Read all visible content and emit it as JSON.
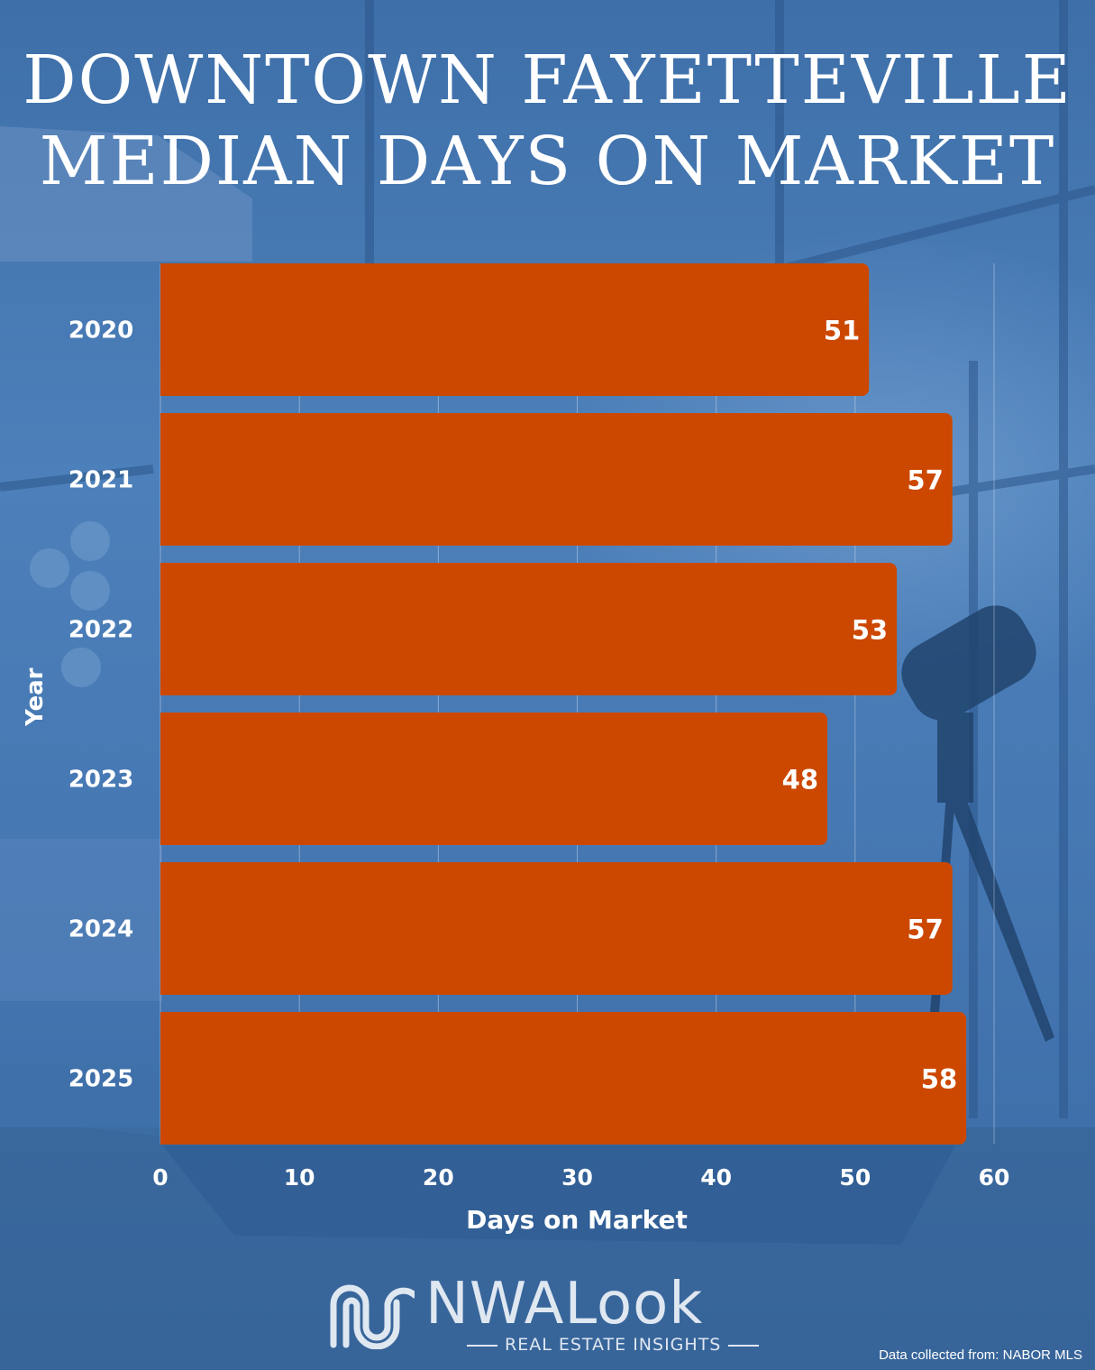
{
  "title_line1": "DOWNTOWN FAYETTEVILLE",
  "title_line2": "MEDIAN DAYS ON MARKET",
  "chart_data": {
    "type": "bar",
    "orientation": "horizontal",
    "categories": [
      "2020",
      "2021",
      "2022",
      "2023",
      "2024",
      "2025"
    ],
    "values": [
      51,
      57,
      53,
      48,
      57,
      58
    ],
    "data_labels": [
      "51",
      "57",
      "53",
      "48",
      "57",
      "58"
    ],
    "xlabel": "Days on Market",
    "ylabel": "Year",
    "xlim": [
      0,
      60
    ],
    "xticks": [
      "0",
      "10",
      "20",
      "30",
      "40",
      "50",
      "60"
    ],
    "grid": "vertical",
    "bar_color": "#cc4800"
  },
  "logo": {
    "wordmark": "NWALook",
    "tagline": "REAL ESTATE INSIGHTS"
  },
  "source": "Data collected from: NABOR MLS",
  "colors": {
    "background": "#3f72ad",
    "bar": "#cc4800",
    "text": "#ffffff"
  }
}
